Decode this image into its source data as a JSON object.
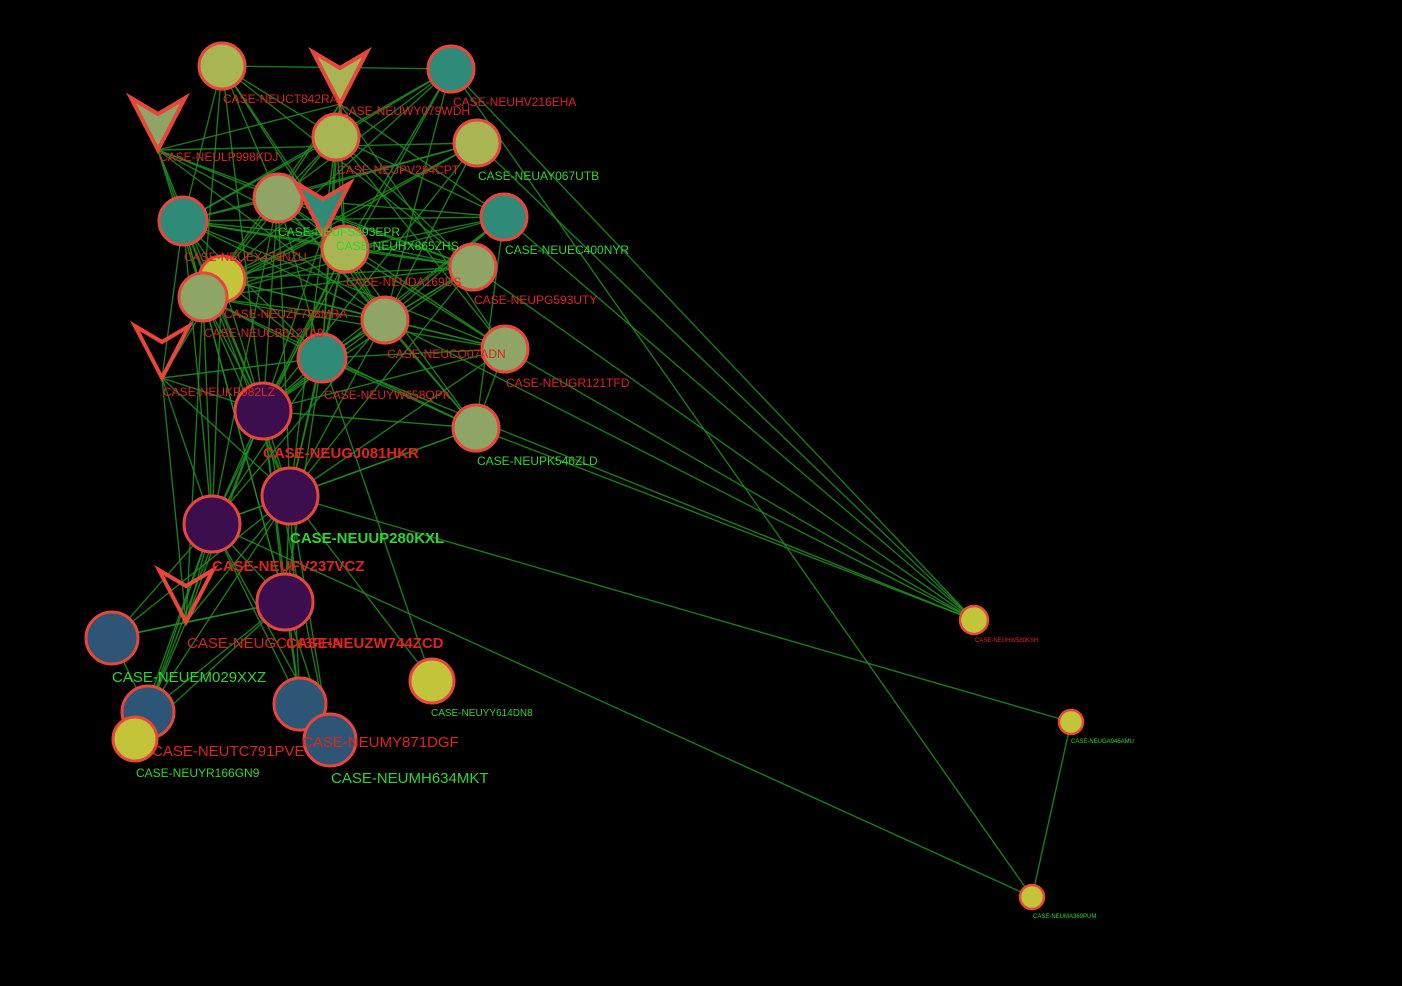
{
  "colors": {
    "background": "#000000",
    "edge": "#1f8f1f",
    "node_stroke": "#e8463a",
    "label_red": "#e0241c",
    "label_green": "#2fd62f",
    "fill_yellow": "#c3c43a",
    "fill_olive": "#a9b552",
    "fill_sage": "#8fa565",
    "fill_teal": "#2f8a78",
    "fill_steel": "#2c5576",
    "fill_purple": "#3c0e4e"
  },
  "nodes": [
    {
      "id": "CASE-NEUCT842RA",
      "label": "CASE-NEUCT842RA",
      "shape": "circle",
      "fill": "fill_olive",
      "label_color": "label_red"
    },
    {
      "id": "CASE-NEUWY079WDH",
      "label": "CASE-NEUWY079WDH",
      "shape": "v",
      "fill": "fill_olive",
      "label_color": "label_red"
    },
    {
      "id": "CASE-NEUHV216EHA",
      "label": "CASE-NEUHV216EHA",
      "shape": "circle",
      "fill": "fill_teal",
      "label_color": "label_red"
    },
    {
      "id": "CASE-NEULP998KDJ",
      "label": "CASE-NEULP998KDJ",
      "shape": "v",
      "fill": "fill_sage",
      "label_color": "label_red"
    },
    {
      "id": "CASE-NEUPV284CPT",
      "label": "CASE-NEUPV284CPT",
      "shape": "circle",
      "fill": "fill_olive",
      "label_color": "label_red"
    },
    {
      "id": "CASE-NEUAY067UTB",
      "label": "CASE-NEUAY067UTB",
      "shape": "circle",
      "fill": "fill_olive",
      "label_color": "label_green"
    },
    {
      "id": "CASE-NEUFS393EPR",
      "label": "CASE-NEUFS393EPR",
      "shape": "circle",
      "fill": "fill_sage",
      "label_color": "label_green"
    },
    {
      "id": "CASE-NEUHX865ZHS",
      "label": "CASE-NEUHX865ZHS",
      "shape": "v",
      "fill": "fill_teal",
      "label_color": "label_green"
    },
    {
      "id": "CASE-NEUEC400NYR",
      "label": "CASE-NEUEC400NYR",
      "shape": "circle",
      "fill": "fill_teal",
      "label_color": "label_green"
    },
    {
      "id": "CASE-NEUEX478NZU",
      "label": "CASE-NEUEX478NZU",
      "shape": "circle",
      "fill": "fill_teal",
      "label_color": "label_red"
    },
    {
      "id": "CASE-NEUDA169DS",
      "label": "CASE-NEUDA169DS",
      "shape": "circle",
      "fill": "fill_olive",
      "label_color": "label_red"
    },
    {
      "id": "CASE-NEUPG593UTY",
      "label": "CASE-NEUPG593UTY",
      "shape": "circle",
      "fill": "fill_sage",
      "label_color": "label_red"
    },
    {
      "id": "CASE-NEUZF788MRA",
      "label": "CASE-NEUZF788MRA",
      "shape": "circle",
      "fill": "fill_yellow",
      "label_color": "label_red"
    },
    {
      "id": "CASE-NEUCB612TA9",
      "label": "CASE-NEUCB612TA9",
      "shape": "circle",
      "fill": "fill_sage",
      "label_color": "label_red"
    },
    {
      "id": "CASE-NEUCO07ADN",
      "label": "CASE-NEUCO07ADN",
      "shape": "circle",
      "fill": "fill_sage",
      "label_color": "label_red"
    },
    {
      "id": "CASE-NEUGR121TFD",
      "label": "CASE-NEUGR121TFD",
      "shape": "circle",
      "fill": "fill_sage",
      "label_color": "label_red"
    },
    {
      "id": "CASE-NEUKP982LZ",
      "label": "CASE-NEUKP982LZ",
      "shape": "v",
      "fill": "none",
      "label_color": "label_red"
    },
    {
      "id": "CASE-NEUYW658QPK",
      "label": "CASE-NEUYW658QPK",
      "shape": "circle",
      "fill": "fill_teal",
      "label_color": "label_red"
    },
    {
      "id": "CASE-NEUGJ081HKR",
      "label": "CASE-NEUGJ081HKR",
      "shape": "circle",
      "fill": "fill_purple",
      "label_color": "label_red"
    },
    {
      "id": "CASE-NEUPK546ZLD",
      "label": "CASE-NEUPK546ZLD",
      "shape": "circle",
      "fill": "fill_sage",
      "label_color": "label_green"
    },
    {
      "id": "CASE-NEUUP280KXL",
      "label": "CASE-NEUUP280KXL",
      "shape": "circle",
      "fill": "fill_purple",
      "label_color": "label_green"
    },
    {
      "id": "CASE-NEUFV237VCZ",
      "label": "CASE-NEUFV237VCZ",
      "shape": "circle",
      "fill": "fill_purple",
      "label_color": "label_red"
    },
    {
      "id": "CASE-NEUGC143FHA",
      "label": "CASE-NEUGC143FHA",
      "shape": "v",
      "fill": "none",
      "label_color": "label_red"
    },
    {
      "id": "CASE-NEUZW744ZCD",
      "label": "CASE-NEUZW744ZCD",
      "shape": "circle",
      "fill": "fill_purple",
      "label_color": "label_red"
    },
    {
      "id": "CASE-NEUEM029XXZ",
      "label": "CASE-NEUEM029XXZ",
      "shape": "circle",
      "fill": "fill_steel",
      "label_color": "label_green"
    },
    {
      "id": "CASE-NEUYY614DN8",
      "label": "CASE-NEUYY614DN8",
      "shape": "circle",
      "fill": "fill_yellow",
      "label_color": "label_green"
    },
    {
      "id": "CASE-NEUTC791PVE",
      "label": "CASE-NEUTC791PVE",
      "shape": "circle",
      "fill": "fill_steel",
      "label_color": "label_red"
    },
    {
      "id": "CASE-NEUYR166GN9",
      "label": "CASE-NEUYR166GN9",
      "shape": "circle",
      "fill": "fill_yellow",
      "label_color": "label_green"
    },
    {
      "id": "CASE-NEUMY871DGF",
      "label": "CASE-NEUMY871DGF",
      "shape": "circle",
      "fill": "fill_steel",
      "label_color": "label_red"
    },
    {
      "id": "CASE-NEUMH634MKT",
      "label": "CASE-NEUMH634MKT",
      "shape": "circle",
      "fill": "fill_steel",
      "label_color": "label_green"
    },
    {
      "id": "CASE-NEUHW580KSH",
      "label": "CASE-NEUHW580KSH",
      "shape": "circle",
      "fill": "fill_yellow",
      "label_color": "label_red"
    },
    {
      "id": "CASE-NEUGA946AMU",
      "label": "CASE-NEUGA946AMU",
      "shape": "circle",
      "fill": "fill_yellow",
      "label_color": "label_green"
    },
    {
      "id": "CASE-NEUMA369PUM",
      "label": "CASE-NEUMA369PUM",
      "shape": "circle",
      "fill": "fill_yellow",
      "label_color": "label_green"
    }
  ],
  "edges": [
    [
      "CASE-NEUCT842RA",
      "CASE-NEUPV284CPT"
    ],
    [
      "CASE-NEUCT842RA",
      "CASE-NEUFS393EPR"
    ],
    [
      "CASE-NEUCT842RA",
      "CASE-NEUEX478NZU"
    ],
    [
      "CASE-NEUCT842RA",
      "CASE-NEUDA169DS"
    ],
    [
      "CASE-NEUCT842RA",
      "CASE-NEUCB612TA9"
    ],
    [
      "CASE-NEUCT842RA",
      "CASE-NEUCO07ADN"
    ],
    [
      "CASE-NEUCT842RA",
      "CASE-NEUGJ081HKR"
    ],
    [
      "CASE-NEUCT842RA",
      "CASE-NEUHV216EHA"
    ],
    [
      "CASE-NEUCT842RA",
      "CASE-NEUPG593UTY"
    ],
    [
      "CASE-NEUWY079WDH",
      "CASE-NEUPV284CPT"
    ],
    [
      "CASE-NEUWY079WDH",
      "CASE-NEUFS393EPR"
    ],
    [
      "CASE-NEUWY079WDH",
      "CASE-NEUEC400NYR"
    ],
    [
      "CASE-NEUWY079WDH",
      "CASE-NEUDA169DS"
    ],
    [
      "CASE-NEUWY079WDH",
      "CASE-NEUCB612TA9"
    ],
    [
      "CASE-NEUWY079WDH",
      "CASE-NEUYW658QPK"
    ],
    [
      "CASE-NEUWY079WDH",
      "CASE-NEUGR121TFD"
    ],
    [
      "CASE-NEUWY079WDH",
      "CASE-NEULP998KDJ"
    ],
    [
      "CASE-NEUHV216EHA",
      "CASE-NEUPV284CPT"
    ],
    [
      "CASE-NEUHV216EHA",
      "CASE-NEUFS393EPR"
    ],
    [
      "CASE-NEUHV216EHA",
      "CASE-NEUDA169DS"
    ],
    [
      "CASE-NEUHV216EHA",
      "CASE-NEUCO07ADN"
    ],
    [
      "CASE-NEUHV216EHA",
      "CASE-NEUGJ081HKR"
    ],
    [
      "CASE-NEUHV216EHA",
      "CASE-NEUHW580KSH"
    ],
    [
      "CASE-NEUHV216EHA",
      "CASE-NEUZF788MRA"
    ],
    [
      "CASE-NEUHV216EHA",
      "CASE-NEUEX478NZU"
    ],
    [
      "CASE-NEULP998KDJ",
      "CASE-NEUEX478NZU"
    ],
    [
      "CASE-NEULP998KDJ",
      "CASE-NEUFS393EPR"
    ],
    [
      "CASE-NEULP998KDJ",
      "CASE-NEUDA169DS"
    ],
    [
      "CASE-NEULP998KDJ",
      "CASE-NEUCO07ADN"
    ],
    [
      "CASE-NEULP998KDJ",
      "CASE-NEUPG593UTY"
    ],
    [
      "CASE-NEULP998KDJ",
      "CASE-NEUGJ081HKR"
    ],
    [
      "CASE-NEULP998KDJ",
      "CASE-NEUAY067UTB"
    ],
    [
      "CASE-NEULP998KDJ",
      "CASE-NEUCB612TA9"
    ],
    [
      "CASE-NEUPV284CPT",
      "CASE-NEUFS393EPR"
    ],
    [
      "CASE-NEUPV284CPT",
      "CASE-NEUEX478NZU"
    ],
    [
      "CASE-NEUPV284CPT",
      "CASE-NEUDA169DS"
    ],
    [
      "CASE-NEUPV284CPT",
      "CASE-NEUCB612TA9"
    ],
    [
      "CASE-NEUPV284CPT",
      "CASE-NEUYW658QPK"
    ],
    [
      "CASE-NEUPV284CPT",
      "CASE-NEUPG593UTY"
    ],
    [
      "CASE-NEUPV284CPT",
      "CASE-NEUGR121TFD"
    ],
    [
      "CASE-NEUPV284CPT",
      "CASE-NEUUP280KXL"
    ],
    [
      "CASE-NEUPV284CPT",
      "CASE-NEUEC400NYR"
    ],
    [
      "CASE-NEUAY067UTB",
      "CASE-NEUFS393EPR"
    ],
    [
      "CASE-NEUAY067UTB",
      "CASE-NEUEX478NZU"
    ],
    [
      "CASE-NEUAY067UTB",
      "CASE-NEUCB612TA9"
    ],
    [
      "CASE-NEUAY067UTB",
      "CASE-NEUCO07ADN"
    ],
    [
      "CASE-NEUAY067UTB",
      "CASE-NEUGJ081HKR"
    ],
    [
      "CASE-NEUAY067UTB",
      "CASE-NEUHW580KSH"
    ],
    [
      "CASE-NEUAY067UTB",
      "CASE-NEUZF788MRA"
    ],
    [
      "CASE-NEUFS393EPR",
      "CASE-NEUEX478NZU"
    ],
    [
      "CASE-NEUFS393EPR",
      "CASE-NEUDA169DS"
    ],
    [
      "CASE-NEUFS393EPR",
      "CASE-NEUCB612TA9"
    ],
    [
      "CASE-NEUFS393EPR",
      "CASE-NEUCO07ADN"
    ],
    [
      "CASE-NEUFS393EPR",
      "CASE-NEUYW658QPK"
    ],
    [
      "CASE-NEUFS393EPR",
      "CASE-NEUGJ081HKR"
    ],
    [
      "CASE-NEUFS393EPR",
      "CASE-NEUUP280KXL"
    ],
    [
      "CASE-NEUFS393EPR",
      "CASE-NEUFV237VCZ"
    ],
    [
      "CASE-NEUFS393EPR",
      "CASE-NEUPG593UTY"
    ],
    [
      "CASE-NEUFS393EPR",
      "CASE-NEUEC400NYR"
    ],
    [
      "CASE-NEUFS393EPR",
      "CASE-NEUGR121TFD"
    ],
    [
      "CASE-NEUFS393EPR",
      "CASE-NEUPK546ZLD"
    ],
    [
      "CASE-NEUHX865ZHS",
      "CASE-NEUEX478NZU"
    ],
    [
      "CASE-NEUHX865ZHS",
      "CASE-NEUCB612TA9"
    ],
    [
      "CASE-NEUHX865ZHS",
      "CASE-NEUCO07ADN"
    ],
    [
      "CASE-NEUHX865ZHS",
      "CASE-NEUGJ081HKR"
    ],
    [
      "CASE-NEUHX865ZHS",
      "CASE-NEUPG593UTY"
    ],
    [
      "CASE-NEUHX865ZHS",
      "CASE-NEUZF788MRA"
    ],
    [
      "CASE-NEUEC400NYR",
      "CASE-NEUDA169DS"
    ],
    [
      "CASE-NEUEC400NYR",
      "CASE-NEUCO07ADN"
    ],
    [
      "CASE-NEUEC400NYR",
      "CASE-NEUYW658QPK"
    ],
    [
      "CASE-NEUEC400NYR",
      "CASE-NEUCB612TA9"
    ],
    [
      "CASE-NEUEC400NYR",
      "CASE-NEUHW580KSH"
    ],
    [
      "CASE-NEUEC400NYR",
      "CASE-NEUEX478NZU"
    ],
    [
      "CASE-NEUEC400NYR",
      "CASE-NEUGJ081HKR"
    ],
    [
      "CASE-NEUEX478NZU",
      "CASE-NEUDA169DS"
    ],
    [
      "CASE-NEUEX478NZU",
      "CASE-NEUCB612TA9"
    ],
    [
      "CASE-NEUEX478NZU",
      "CASE-NEUCO07ADN"
    ],
    [
      "CASE-NEUEX478NZU",
      "CASE-NEUYW658QPK"
    ],
    [
      "CASE-NEUEX478NZU",
      "CASE-NEUGJ081HKR"
    ],
    [
      "CASE-NEUEX478NZU",
      "CASE-NEUUP280KXL"
    ],
    [
      "CASE-NEUEX478NZU",
      "CASE-NEUFV237VCZ"
    ],
    [
      "CASE-NEUEX478NZU",
      "CASE-NEUZW744ZCD"
    ],
    [
      "CASE-NEUEX478NZU",
      "CASE-NEUPG593UTY"
    ],
    [
      "CASE-NEUEX478NZU",
      "CASE-NEUGR121TFD"
    ],
    [
      "CASE-NEUEX478NZU",
      "CASE-NEUZF788MRA"
    ],
    [
      "CASE-NEUEX478NZU",
      "CASE-NEUKP982LZ"
    ],
    [
      "CASE-NEUDA169DS",
      "CASE-NEUCB612TA9"
    ],
    [
      "CASE-NEUDA169DS",
      "CASE-NEUCO07ADN"
    ],
    [
      "CASE-NEUDA169DS",
      "CASE-NEUYW658QPK"
    ],
    [
      "CASE-NEUDA169DS",
      "CASE-NEUGJ081HKR"
    ],
    [
      "CASE-NEUDA169DS",
      "CASE-NEUUP280KXL"
    ],
    [
      "CASE-NEUDA169DS",
      "CASE-NEUPG593UTY"
    ],
    [
      "CASE-NEUDA169DS",
      "CASE-NEUGR121TFD"
    ],
    [
      "CASE-NEUDA169DS",
      "CASE-NEUPK546ZLD"
    ],
    [
      "CASE-NEUDA169DS",
      "CASE-NEUZF788MRA"
    ],
    [
      "CASE-NEUDA169DS",
      "CASE-NEUFV237VCZ"
    ],
    [
      "CASE-NEUPG593UTY",
      "CASE-NEUCB612TA9"
    ],
    [
      "CASE-NEUPG593UTY",
      "CASE-NEUCO07ADN"
    ],
    [
      "CASE-NEUPG593UTY",
      "CASE-NEUYW658QPK"
    ],
    [
      "CASE-NEUPG593UTY",
      "CASE-NEUGJ081HKR"
    ],
    [
      "CASE-NEUPG593UTY",
      "CASE-NEUHW580KSH"
    ],
    [
      "CASE-NEUPG593UTY",
      "CASE-NEUZF788MRA"
    ],
    [
      "CASE-NEUPG593UTY",
      "CASE-NEUUP280KXL"
    ],
    [
      "CASE-NEUZF788MRA",
      "CASE-NEUCB612TA9"
    ],
    [
      "CASE-NEUZF788MRA",
      "CASE-NEUCO07ADN"
    ],
    [
      "CASE-NEUZF788MRA",
      "CASE-NEUYW658QPK"
    ],
    [
      "CASE-NEUZF788MRA",
      "CASE-NEUGJ081HKR"
    ],
    [
      "CASE-NEUZF788MRA",
      "CASE-NEUFV237VCZ"
    ],
    [
      "CASE-NEUZF788MRA",
      "CASE-NEUKP982LZ"
    ],
    [
      "CASE-NEUZF788MRA",
      "CASE-NEUGR121TFD"
    ],
    [
      "CASE-NEUCB612TA9",
      "CASE-NEUCO07ADN"
    ],
    [
      "CASE-NEUCB612TA9",
      "CASE-NEUYW658QPK"
    ],
    [
      "CASE-NEUCB612TA9",
      "CASE-NEUGJ081HKR"
    ],
    [
      "CASE-NEUCB612TA9",
      "CASE-NEUUP280KXL"
    ],
    [
      "CASE-NEUCB612TA9",
      "CASE-NEUFV237VCZ"
    ],
    [
      "CASE-NEUCB612TA9",
      "CASE-NEUGR121TFD"
    ],
    [
      "CASE-NEUCB612TA9",
      "CASE-NEUKP982LZ"
    ],
    [
      "CASE-NEUCB612TA9",
      "CASE-NEUZW744ZCD"
    ],
    [
      "CASE-NEUCB612TA9",
      "CASE-NEUGC143FHA"
    ],
    [
      "CASE-NEUCB612TA9",
      "CASE-NEUPK546ZLD"
    ],
    [
      "CASE-NEUCO07ADN",
      "CASE-NEUYW658QPK"
    ],
    [
      "CASE-NEUCO07ADN",
      "CASE-NEUGJ081HKR"
    ],
    [
      "CASE-NEUCO07ADN",
      "CASE-NEUUP280KXL"
    ],
    [
      "CASE-NEUCO07ADN",
      "CASE-NEUGR121TFD"
    ],
    [
      "CASE-NEUCO07ADN",
      "CASE-NEUPK546ZLD"
    ],
    [
      "CASE-NEUCO07ADN",
      "CASE-NEUHW580KSH"
    ],
    [
      "CASE-NEUCO07ADN",
      "CASE-NEUFV237VCZ"
    ],
    [
      "CASE-NEUGR121TFD",
      "CASE-NEUYW658QPK"
    ],
    [
      "CASE-NEUGR121TFD",
      "CASE-NEUGJ081HKR"
    ],
    [
      "CASE-NEUGR121TFD",
      "CASE-NEUHW580KSH"
    ],
    [
      "CASE-NEUGR121TFD",
      "CASE-NEUUP280KXL"
    ],
    [
      "CASE-NEUGR121TFD",
      "CASE-NEUPK546ZLD"
    ],
    [
      "CASE-NEUKP982LZ",
      "CASE-NEUYW658QPK"
    ],
    [
      "CASE-NEUKP982LZ",
      "CASE-NEUGJ081HKR"
    ],
    [
      "CASE-NEUKP982LZ",
      "CASE-NEUFV237VCZ"
    ],
    [
      "CASE-NEUKP982LZ",
      "CASE-NEUUP280KXL"
    ],
    [
      "CASE-NEUKP982LZ",
      "CASE-NEUGC143FHA"
    ],
    [
      "CASE-NEUYW658QPK",
      "CASE-NEUGJ081HKR"
    ],
    [
      "CASE-NEUYW658QPK",
      "CASE-NEUUP280KXL"
    ],
    [
      "CASE-NEUYW658QPK",
      "CASE-NEUFV237VCZ"
    ],
    [
      "CASE-NEUYW658QPK",
      "CASE-NEUPK546ZLD"
    ],
    [
      "CASE-NEUYW658QPK",
      "CASE-NEUZW744ZCD"
    ],
    [
      "CASE-NEUYW658QPK",
      "CASE-NEUHW580KSH"
    ],
    [
      "CASE-NEUYW658QPK",
      "CASE-NEUYY614DN8"
    ],
    [
      "CASE-NEUGJ081HKR",
      "CASE-NEUUP280KXL"
    ],
    [
      "CASE-NEUGJ081HKR",
      "CASE-NEUFV237VCZ"
    ],
    [
      "CASE-NEUGJ081HKR",
      "CASE-NEUZW744ZCD"
    ],
    [
      "CASE-NEUGJ081HKR",
      "CASE-NEUPK546ZLD"
    ],
    [
      "CASE-NEUGJ081HKR",
      "CASE-NEUGC143FHA"
    ],
    [
      "CASE-NEUGJ081HKR",
      "CASE-NEUMY871DGF"
    ],
    [
      "CASE-NEUGJ081HKR",
      "CASE-NEUMH634MKT"
    ],
    [
      "CASE-NEUGJ081HKR",
      "CASE-NEUTC791PVE"
    ],
    [
      "CASE-NEUPK546ZLD",
      "CASE-NEUUP280KXL"
    ],
    [
      "CASE-NEUPK546ZLD",
      "CASE-NEUHW580KSH"
    ],
    [
      "CASE-NEUPK546ZLD",
      "CASE-NEUFV237VCZ"
    ],
    [
      "CASE-NEUUP280KXL",
      "CASE-NEUFV237VCZ"
    ],
    [
      "CASE-NEUUP280KXL",
      "CASE-NEUZW744ZCD"
    ],
    [
      "CASE-NEUUP280KXL",
      "CASE-NEUGC143FHA"
    ],
    [
      "CASE-NEUUP280KXL",
      "CASE-NEUMY871DGF"
    ],
    [
      "CASE-NEUUP280KXL",
      "CASE-NEUMH634MKT"
    ],
    [
      "CASE-NEUUP280KXL",
      "CASE-NEUGA946AMU"
    ],
    [
      "CASE-NEUUP280KXL",
      "CASE-NEUTC791PVE"
    ],
    [
      "CASE-NEUUP280KXL",
      "CASE-NEUYY614DN8"
    ],
    [
      "CASE-NEUUP280KXL",
      "CASE-NEUEM029XXZ"
    ],
    [
      "CASE-NEUFV237VCZ",
      "CASE-NEUZW744ZCD"
    ],
    [
      "CASE-NEUFV237VCZ",
      "CASE-NEUGC143FHA"
    ],
    [
      "CASE-NEUFV237VCZ",
      "CASE-NEUEM029XXZ"
    ],
    [
      "CASE-NEUFV237VCZ",
      "CASE-NEUTC791PVE"
    ],
    [
      "CASE-NEUFV237VCZ",
      "CASE-NEUYR166GN9"
    ],
    [
      "CASE-NEUFV237VCZ",
      "CASE-NEUMY871DGF"
    ],
    [
      "CASE-NEUFV237VCZ",
      "CASE-NEUMA369PUM"
    ],
    [
      "CASE-NEUFV237VCZ",
      "CASE-NEUMH634MKT"
    ],
    [
      "CASE-NEUGC143FHA",
      "CASE-NEUZW744ZCD"
    ],
    [
      "CASE-NEUGC143FHA",
      "CASE-NEUEM029XXZ"
    ],
    [
      "CASE-NEUGC143FHA",
      "CASE-NEUTC791PVE"
    ],
    [
      "CASE-NEUZW744ZCD",
      "CASE-NEUMY871DGF"
    ],
    [
      "CASE-NEUZW744ZCD",
      "CASE-NEUMH634MKT"
    ],
    [
      "CASE-NEUZW744ZCD",
      "CASE-NEUEM029XXZ"
    ],
    [
      "CASE-NEUZW744ZCD",
      "CASE-NEUTC791PVE"
    ],
    [
      "CASE-NEUZW744ZCD",
      "CASE-NEUYR166GN9"
    ],
    [
      "CASE-NEUEM029XXZ",
      "CASE-NEUTC791PVE"
    ],
    [
      "CASE-NEUTC791PVE",
      "CASE-NEUYR166GN9"
    ],
    [
      "CASE-NEUMY871DGF",
      "CASE-NEUMH634MKT"
    ],
    [
      "CASE-NEUHV216EHA",
      "CASE-NEUMA369PUM"
    ],
    [
      "CASE-NEUGA946AMU",
      "CASE-NEUMA369PUM"
    ],
    [
      "CASE-NEUEC400NYR",
      "CASE-NEUPK546ZLD"
    ]
  ]
}
